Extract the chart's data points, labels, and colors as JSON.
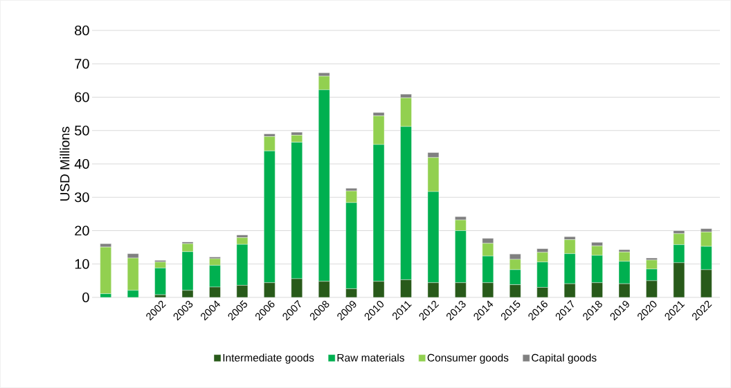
{
  "chart_data": {
    "type": "bar",
    "stacked": true,
    "ylabel": "USD Millions",
    "categories": [
      null,
      null,
      "2002",
      "2003",
      "2004",
      "2005",
      "2006",
      "2007",
      "2008",
      "2009",
      "2010",
      "2011",
      "2012",
      "2013",
      "2014",
      "2015",
      "2016",
      "2017",
      "2018",
      "2019",
      "2020",
      "2021",
      "2022"
    ],
    "series": [
      {
        "name": "Intermediate goods",
        "color": "#285a1a",
        "values": [
          0,
          0,
          0.8,
          2.1,
          3.1,
          3.6,
          4.4,
          5.6,
          4.8,
          2.6,
          4.8,
          5.3,
          4.4,
          4.4,
          4.4,
          3.8,
          3.0,
          4.1,
          4.4,
          4.1,
          5.0,
          10.4,
          8.3
        ]
      },
      {
        "name": "Raw materials",
        "color": "#00b050",
        "values": [
          1.1,
          2.1,
          8.0,
          11.6,
          6.5,
          12.3,
          39.5,
          40.9,
          57.4,
          25.8,
          41.0,
          45.9,
          27.3,
          15.6,
          8.0,
          4.5,
          7.6,
          9.0,
          8.2,
          6.7,
          3.5,
          5.4,
          7.0
        ]
      },
      {
        "name": "Consumer goods",
        "color": "#92d050",
        "values": [
          14.0,
          9.7,
          1.8,
          2.4,
          2.0,
          2.0,
          4.3,
          2.1,
          4.1,
          3.5,
          8.6,
          8.6,
          10.2,
          3.2,
          3.8,
          3.1,
          2.9,
          4.2,
          2.8,
          2.8,
          2.7,
          3.3,
          4.3
        ]
      },
      {
        "name": "Capital goods",
        "color": "#808080",
        "values": [
          1.0,
          1.3,
          0.5,
          0.5,
          0.5,
          0.8,
          0.8,
          0.9,
          1.0,
          0.8,
          1.0,
          1.1,
          1.5,
          1.0,
          1.5,
          1.6,
          1.1,
          0.9,
          1.1,
          0.7,
          0.6,
          0.9,
          1.0
        ]
      }
    ],
    "ylim": [
      0,
      80
    ],
    "yticks": [
      0,
      10,
      20,
      30,
      40,
      50,
      60,
      70,
      80
    ],
    "grid": "y",
    "legend": "bottom"
  }
}
